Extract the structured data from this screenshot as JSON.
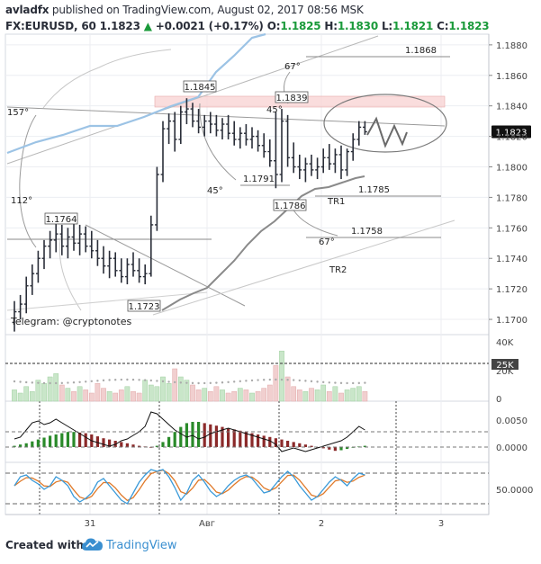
{
  "header": {
    "author": "avladfx",
    "published": "published on TradingView.com, August 02, 2017 08:56 MSK",
    "symbol": "FX:EURUSD, 60",
    "last": "1.1823",
    "change": "+0.0021 (+0.17%)",
    "o_label": "O:",
    "o_value": "1.1825",
    "h_label": "H:",
    "h_value": "1.1830",
    "l_label": "L:",
    "l_value": "1.1821",
    "c_label": "C:",
    "c_value": "1.1823"
  },
  "footer": {
    "created": "Created with",
    "brand": "TradingView"
  },
  "chart_data": {
    "type": "candlestick",
    "price_axis": {
      "ylim": [
        1.169,
        1.1887
      ],
      "ticks": [
        "1.1880",
        "1.1860",
        "1.1840",
        "1.1820",
        "1.1800",
        "1.1780",
        "1.1760",
        "1.1740",
        "1.1720",
        "1.1700"
      ],
      "last_price": "1.1823"
    },
    "x_axis": {
      "ticks": [
        "31",
        "Авг",
        "2",
        "3"
      ]
    },
    "bars": [
      {
        "o": 1.1698,
        "h": 1.1712,
        "l": 1.1692,
        "c": 1.1705
      },
      {
        "o": 1.1705,
        "h": 1.1716,
        "l": 1.17,
        "c": 1.171
      },
      {
        "o": 1.171,
        "h": 1.1728,
        "l": 1.1704,
        "c": 1.1722
      },
      {
        "o": 1.1722,
        "h": 1.1736,
        "l": 1.1716,
        "c": 1.173
      },
      {
        "o": 1.173,
        "h": 1.1745,
        "l": 1.1724,
        "c": 1.174
      },
      {
        "o": 1.174,
        "h": 1.1752,
        "l": 1.1733,
        "c": 1.1748
      },
      {
        "o": 1.1748,
        "h": 1.1758,
        "l": 1.174,
        "c": 1.1752
      },
      {
        "o": 1.1752,
        "h": 1.1764,
        "l": 1.1744,
        "c": 1.1756
      },
      {
        "o": 1.1756,
        "h": 1.1762,
        "l": 1.1742,
        "c": 1.1748
      },
      {
        "o": 1.1748,
        "h": 1.176,
        "l": 1.174,
        "c": 1.1754
      },
      {
        "o": 1.1754,
        "h": 1.1763,
        "l": 1.1745,
        "c": 1.175
      },
      {
        "o": 1.175,
        "h": 1.1762,
        "l": 1.1742,
        "c": 1.1756
      },
      {
        "o": 1.1756,
        "h": 1.1761,
        "l": 1.1744,
        "c": 1.1748
      },
      {
        "o": 1.1748,
        "h": 1.1758,
        "l": 1.174,
        "c": 1.1745
      },
      {
        "o": 1.1745,
        "h": 1.1752,
        "l": 1.1735,
        "c": 1.174
      },
      {
        "o": 1.174,
        "h": 1.1748,
        "l": 1.173,
        "c": 1.1735
      },
      {
        "o": 1.1735,
        "h": 1.1745,
        "l": 1.1727,
        "c": 1.174
      },
      {
        "o": 1.174,
        "h": 1.1744,
        "l": 1.1728,
        "c": 1.1732
      },
      {
        "o": 1.1732,
        "h": 1.174,
        "l": 1.1724,
        "c": 1.1728
      },
      {
        "o": 1.1728,
        "h": 1.174,
        "l": 1.1723,
        "c": 1.1736
      },
      {
        "o": 1.1736,
        "h": 1.1744,
        "l": 1.1728,
        "c": 1.1732
      },
      {
        "o": 1.1732,
        "h": 1.174,
        "l": 1.1724,
        "c": 1.1728
      },
      {
        "o": 1.1728,
        "h": 1.1736,
        "l": 1.1723,
        "c": 1.173
      },
      {
        "o": 1.173,
        "h": 1.1768,
        "l": 1.1728,
        "c": 1.1762
      },
      {
        "o": 1.1762,
        "h": 1.18,
        "l": 1.1758,
        "c": 1.1795
      },
      {
        "o": 1.1795,
        "h": 1.183,
        "l": 1.179,
        "c": 1.1825
      },
      {
        "o": 1.1825,
        "h": 1.1835,
        "l": 1.1815,
        "c": 1.183
      },
      {
        "o": 1.183,
        "h": 1.1836,
        "l": 1.181,
        "c": 1.1818
      },
      {
        "o": 1.1818,
        "h": 1.184,
        "l": 1.1815,
        "c": 1.1836
      },
      {
        "o": 1.1836,
        "h": 1.1845,
        "l": 1.1828,
        "c": 1.1838
      },
      {
        "o": 1.1838,
        "h": 1.1842,
        "l": 1.1826,
        "c": 1.183
      },
      {
        "o": 1.183,
        "h": 1.1838,
        "l": 1.1822,
        "c": 1.1826
      },
      {
        "o": 1.1826,
        "h": 1.1834,
        "l": 1.182,
        "c": 1.183
      },
      {
        "o": 1.183,
        "h": 1.1836,
        "l": 1.1822,
        "c": 1.1828
      },
      {
        "o": 1.1828,
        "h": 1.1834,
        "l": 1.182,
        "c": 1.1824
      },
      {
        "o": 1.1824,
        "h": 1.1832,
        "l": 1.1818,
        "c": 1.1828
      },
      {
        "o": 1.1828,
        "h": 1.1834,
        "l": 1.1818,
        "c": 1.1822
      },
      {
        "o": 1.1822,
        "h": 1.183,
        "l": 1.1814,
        "c": 1.1818
      },
      {
        "o": 1.1818,
        "h": 1.1826,
        "l": 1.1812,
        "c": 1.1822
      },
      {
        "o": 1.1822,
        "h": 1.1828,
        "l": 1.1814,
        "c": 1.1818
      },
      {
        "o": 1.1818,
        "h": 1.1826,
        "l": 1.1812,
        "c": 1.182
      },
      {
        "o": 1.182,
        "h": 1.1824,
        "l": 1.181,
        "c": 1.1814
      },
      {
        "o": 1.1814,
        "h": 1.1822,
        "l": 1.1806,
        "c": 1.181
      },
      {
        "o": 1.181,
        "h": 1.1818,
        "l": 1.18,
        "c": 1.1804
      },
      {
        "o": 1.1804,
        "h": 1.1836,
        "l": 1.1786,
        "c": 1.1795
      },
      {
        "o": 1.1795,
        "h": 1.1838,
        "l": 1.179,
        "c": 1.183
      },
      {
        "o": 1.183,
        "h": 1.1834,
        "l": 1.18,
        "c": 1.1806
      },
      {
        "o": 1.1806,
        "h": 1.1816,
        "l": 1.1796,
        "c": 1.18
      },
      {
        "o": 1.18,
        "h": 1.1808,
        "l": 1.1792,
        "c": 1.1798
      },
      {
        "o": 1.1798,
        "h": 1.1806,
        "l": 1.179,
        "c": 1.1802
      },
      {
        "o": 1.1802,
        "h": 1.1808,
        "l": 1.1794,
        "c": 1.1798
      },
      {
        "o": 1.1798,
        "h": 1.1806,
        "l": 1.1792,
        "c": 1.18
      },
      {
        "o": 1.18,
        "h": 1.1812,
        "l": 1.1796,
        "c": 1.1806
      },
      {
        "o": 1.1806,
        "h": 1.1815,
        "l": 1.1798,
        "c": 1.1802
      },
      {
        "o": 1.1802,
        "h": 1.1812,
        "l": 1.1796,
        "c": 1.1808
      },
      {
        "o": 1.1808,
        "h": 1.1814,
        "l": 1.1792,
        "c": 1.1798
      },
      {
        "o": 1.1798,
        "h": 1.1812,
        "l": 1.1794,
        "c": 1.181
      },
      {
        "o": 1.181,
        "h": 1.1822,
        "l": 1.1804,
        "c": 1.1818
      },
      {
        "o": 1.1818,
        "h": 1.183,
        "l": 1.1814,
        "c": 1.1826
      },
      {
        "o": 1.1826,
        "h": 1.183,
        "l": 1.1821,
        "c": 1.1823
      }
    ],
    "price_labels": [
      "1.1845",
      "1.1839",
      "1.1764",
      "1.1723",
      "1.1791",
      "1.1786",
      "1.1868",
      "1.1785",
      "1.1758"
    ],
    "annotations": [
      "157°",
      "112°",
      "67°",
      "45°",
      "45°",
      "67°",
      "TR1",
      "TR2"
    ],
    "watermark": "Telegram: @cryptonotes",
    "volume": {
      "ticks": [
        "40K",
        "25K",
        "20K",
        "0"
      ],
      "badge": "25K"
    },
    "macd": {
      "ticks": [
        "0.0050",
        "0.0000"
      ]
    },
    "stochastic": {
      "ticks": [
        "50.0000"
      ]
    },
    "colors": {
      "bars": "#2a2e39",
      "ma_fast": "#8fb8de",
      "ma_slow": "#7a7a7a",
      "resistance_zone": "#f5c6c6",
      "hist_up": "#2a8a2a",
      "hist_down": "#8b2a2a",
      "stoch_k": "#3a9ad9",
      "stoch_d": "#e07a2a",
      "brand": "#3a8fd0"
    }
  }
}
